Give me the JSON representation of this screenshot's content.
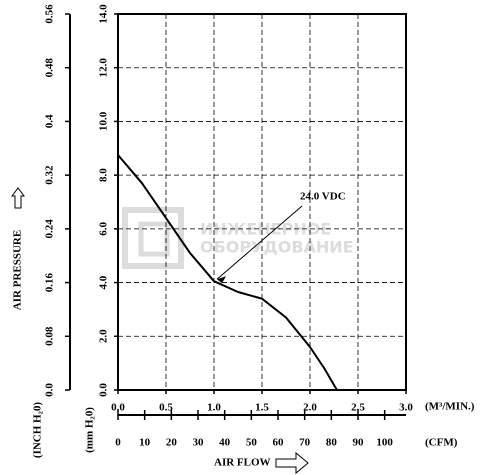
{
  "chart_data": {
    "type": "line",
    "title_y": "AIR PRESSURE",
    "y_unit": "(mm H₂0)",
    "y2_unit": "(INCH H₂0)",
    "x_unit": "(M³/MIN.)",
    "x2_unit": "(CFM)",
    "xlabel": "AIR FLOW",
    "watermark": [
      "ИНЖЕНЕРНОЕ",
      "ОБОРУДОВАНИЕ"
    ],
    "x": [
      0,
      0.25,
      0.5,
      0.75,
      1.0,
      1.25,
      1.5,
      1.75,
      2.0,
      2.15,
      2.28
    ],
    "series": [
      {
        "name": "24.0 VDC",
        "color": "#000000",
        "values": [
          8.75,
          7.7,
          6.4,
          5.1,
          4.05,
          3.65,
          3.4,
          2.7,
          1.6,
          0.8,
          0
        ]
      }
    ],
    "annotation_point": [
      1.0,
      4.05
    ],
    "xlim": [
      0,
      3.0
    ],
    "xticks": [
      {
        "value": 0,
        "label": "0.0"
      },
      0.5,
      {
        "value": 1,
        "label": "1.0"
      },
      1.5,
      {
        "value": 2,
        "label": "2.0"
      },
      2.5,
      {
        "value": 3,
        "label": "3.0"
      }
    ],
    "ylim": [
      0,
      14
    ],
    "yticks": [
      {
        "value": 0,
        "label": "0.0"
      },
      {
        "value": 2,
        "label": "2.0"
      },
      {
        "value": 4,
        "label": "4.0"
      },
      {
        "value": 6,
        "label": "6.0"
      },
      {
        "value": 8,
        "label": "8.0"
      },
      {
        "value": 10,
        "label": "10.0"
      },
      {
        "value": 12,
        "label": "12.0"
      },
      {
        "value": 14,
        "label": "14.0"
      }
    ],
    "y2lim": [
      0,
      0.56
    ],
    "y2ticks": [
      {
        "value": 0,
        "label": "0.0"
      },
      0.08,
      0.16,
      0.24,
      0.32,
      0.4,
      0.48,
      0.56
    ],
    "x2lim": [
      0,
      108
    ],
    "x2ticks": [
      0,
      10,
      20,
      30,
      40,
      50,
      60,
      70,
      80,
      90,
      100
    ],
    "grid": true
  }
}
